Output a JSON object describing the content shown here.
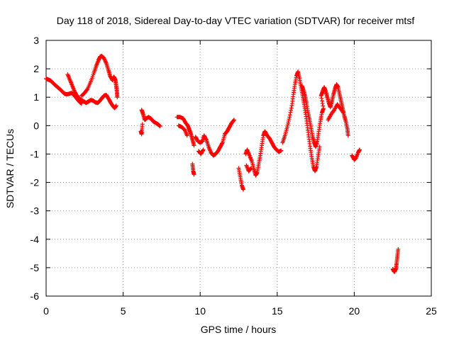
{
  "chart_data": {
    "type": "scatter",
    "title": "Day 118 of 2018, Sidereal Day-to-day VTEC variation (SDTVAR) for receiver mtsf",
    "xlabel": "GPS time / hours",
    "ylabel": "SDTVAR / TECUs",
    "xlim": [
      0,
      25
    ],
    "ylim": [
      -6,
      3
    ],
    "x_ticks": [
      "0",
      "5",
      "10",
      "15",
      "20",
      "25"
    ],
    "y_ticks": [
      "3",
      "2",
      "1",
      "0",
      "-1",
      "-2",
      "-3",
      "-4",
      "-5",
      "-6"
    ],
    "grid": true,
    "marker": "plus",
    "color": "#ff0000",
    "series": [
      {
        "name": "SDTVAR",
        "points": [
          [
            0.0,
            1.65
          ],
          [
            0.15,
            1.62
          ],
          [
            0.3,
            1.58
          ],
          [
            0.45,
            1.5
          ],
          [
            0.6,
            1.42
          ],
          [
            0.75,
            1.35
          ],
          [
            0.9,
            1.28
          ],
          [
            1.05,
            1.2
          ],
          [
            1.2,
            1.12
          ],
          [
            1.35,
            1.1
          ],
          [
            1.5,
            1.12
          ],
          [
            1.65,
            1.15
          ],
          [
            1.8,
            1.08
          ],
          [
            1.95,
            0.98
          ],
          [
            2.1,
            0.88
          ],
          [
            2.2,
            0.82
          ],
          [
            2.3,
            0.78
          ],
          [
            1.4,
            1.8
          ],
          [
            1.55,
            1.6
          ],
          [
            1.7,
            1.4
          ],
          [
            1.85,
            1.2
          ],
          [
            2.0,
            1.05
          ],
          [
            2.15,
            0.95
          ],
          [
            2.3,
            0.9
          ],
          [
            2.45,
            0.85
          ],
          [
            2.6,
            0.8
          ],
          [
            2.75,
            0.85
          ],
          [
            2.9,
            0.9
          ],
          [
            3.05,
            0.88
          ],
          [
            3.2,
            0.82
          ],
          [
            3.35,
            0.8
          ],
          [
            3.45,
            0.85
          ],
          [
            3.6,
            0.95
          ],
          [
            3.75,
            1.05
          ],
          [
            3.9,
            1.08
          ],
          [
            4.05,
            0.95
          ],
          [
            4.2,
            0.8
          ],
          [
            4.35,
            0.68
          ],
          [
            4.45,
            0.62
          ],
          [
            4.55,
            0.7
          ],
          [
            2.3,
            1.05
          ],
          [
            2.5,
            1.15
          ],
          [
            2.7,
            1.3
          ],
          [
            2.9,
            1.55
          ],
          [
            3.1,
            1.85
          ],
          [
            3.25,
            2.1
          ],
          [
            3.4,
            2.3
          ],
          [
            3.5,
            2.42
          ],
          [
            3.6,
            2.45
          ],
          [
            3.75,
            2.38
          ],
          [
            3.9,
            2.2
          ],
          [
            4.05,
            1.95
          ],
          [
            4.15,
            1.75
          ],
          [
            4.3,
            1.6
          ],
          [
            4.4,
            1.72
          ],
          [
            4.5,
            1.6
          ],
          [
            4.55,
            1.4
          ],
          [
            4.6,
            1.2
          ],
          [
            4.62,
            1.0
          ],
          [
            6.2,
            0.55
          ],
          [
            6.3,
            0.4
          ],
          [
            6.4,
            0.2
          ],
          [
            6.5,
            0.25
          ],
          [
            6.65,
            0.3
          ],
          [
            6.8,
            0.25
          ],
          [
            6.95,
            0.15
          ],
          [
            7.1,
            0.1
          ],
          [
            7.25,
            0.05
          ],
          [
            7.4,
            -0.02
          ],
          [
            6.15,
            -0.2
          ],
          [
            6.2,
            -0.3
          ],
          [
            6.25,
            0.05
          ],
          [
            8.5,
            0.3
          ],
          [
            8.7,
            0.3
          ],
          [
            8.9,
            0.25
          ],
          [
            9.05,
            0.1
          ],
          [
            9.2,
            0.0
          ],
          [
            9.3,
            -0.15
          ],
          [
            9.4,
            -0.3
          ],
          [
            9.5,
            -0.5
          ],
          [
            9.6,
            -0.7
          ],
          [
            8.6,
            0.0
          ],
          [
            8.8,
            -0.05
          ],
          [
            9.0,
            -0.15
          ],
          [
            9.15,
            -0.35
          ],
          [
            9.5,
            -1.35
          ],
          [
            9.55,
            -1.6
          ],
          [
            9.6,
            -1.72
          ],
          [
            9.7,
            -0.4
          ],
          [
            9.85,
            -0.55
          ],
          [
            10.0,
            -0.6
          ],
          [
            10.15,
            -0.55
          ],
          [
            10.25,
            -0.35
          ],
          [
            10.4,
            -0.5
          ],
          [
            10.55,
            -0.75
          ],
          [
            10.7,
            -0.95
          ],
          [
            10.85,
            -1.05
          ],
          [
            11.0,
            -1.0
          ],
          [
            11.15,
            -0.9
          ],
          [
            11.3,
            -0.75
          ],
          [
            11.45,
            -0.6
          ],
          [
            11.6,
            -0.3
          ],
          [
            11.75,
            -0.2
          ],
          [
            11.9,
            -0.05
          ],
          [
            12.05,
            0.1
          ],
          [
            12.2,
            0.2
          ],
          [
            9.9,
            -0.9
          ],
          [
            10.05,
            -1.0
          ],
          [
            10.2,
            -0.85
          ],
          [
            12.5,
            -1.5
          ],
          [
            12.6,
            -1.8
          ],
          [
            12.7,
            -2.1
          ],
          [
            12.8,
            -2.25
          ],
          [
            12.95,
            -1.0
          ],
          [
            13.05,
            -0.85
          ],
          [
            13.2,
            -1.05
          ],
          [
            13.35,
            -1.25
          ],
          [
            13.5,
            -1.55
          ],
          [
            13.6,
            -1.75
          ],
          [
            13.7,
            -1.65
          ],
          [
            13.8,
            -1.35
          ],
          [
            13.9,
            -1.05
          ],
          [
            14.0,
            -0.7
          ],
          [
            14.1,
            -0.35
          ],
          [
            14.2,
            -0.2
          ],
          [
            14.35,
            -0.35
          ],
          [
            14.5,
            -0.45
          ],
          [
            14.65,
            -0.6
          ],
          [
            14.8,
            -0.75
          ],
          [
            14.95,
            -0.85
          ],
          [
            15.1,
            -0.92
          ],
          [
            15.25,
            -0.88
          ],
          [
            13.0,
            -1.4
          ],
          [
            13.15,
            -1.6
          ],
          [
            13.3,
            -1.5
          ],
          [
            15.35,
            -0.6
          ],
          [
            15.5,
            -0.35
          ],
          [
            15.65,
            -0.05
          ],
          [
            15.8,
            0.3
          ],
          [
            15.95,
            0.7
          ],
          [
            16.05,
            1.1
          ],
          [
            16.15,
            1.45
          ],
          [
            16.25,
            1.75
          ],
          [
            16.35,
            1.9
          ],
          [
            16.45,
            1.65
          ],
          [
            16.55,
            1.35
          ],
          [
            16.65,
            1.05
          ],
          [
            16.75,
            0.75
          ],
          [
            16.85,
            0.4
          ],
          [
            16.95,
            0.0
          ],
          [
            17.05,
            -0.4
          ],
          [
            17.15,
            -0.8
          ],
          [
            17.25,
            -1.15
          ],
          [
            17.35,
            -1.45
          ],
          [
            17.45,
            -1.6
          ],
          [
            17.55,
            -1.45
          ],
          [
            17.65,
            -1.1
          ],
          [
            17.75,
            -0.75
          ],
          [
            16.6,
            1.4
          ],
          [
            16.7,
            1.25
          ],
          [
            16.8,
            1.05
          ],
          [
            16.9,
            0.8
          ],
          [
            17.0,
            0.45
          ],
          [
            17.1,
            0.2
          ],
          [
            17.2,
            -0.1
          ],
          [
            17.3,
            -0.4
          ],
          [
            17.4,
            -0.6
          ],
          [
            17.5,
            -0.75
          ],
          [
            17.6,
            -0.55
          ],
          [
            17.7,
            -0.2
          ],
          [
            17.8,
            0.15
          ],
          [
            17.9,
            0.45
          ],
          [
            18.0,
            0.6
          ],
          [
            17.85,
            1.05
          ],
          [
            17.95,
            1.2
          ],
          [
            18.05,
            1.35
          ],
          [
            18.15,
            1.2
          ],
          [
            18.25,
            1.0
          ],
          [
            18.35,
            0.8
          ],
          [
            18.45,
            0.65
          ],
          [
            18.55,
            0.85
          ],
          [
            18.65,
            1.1
          ],
          [
            18.75,
            1.3
          ],
          [
            18.85,
            1.45
          ],
          [
            18.95,
            1.35
          ],
          [
            19.05,
            1.1
          ],
          [
            19.15,
            0.85
          ],
          [
            19.25,
            0.6
          ],
          [
            19.35,
            0.35
          ],
          [
            19.45,
            0.15
          ],
          [
            19.55,
            -0.1
          ],
          [
            19.6,
            -0.35
          ],
          [
            18.3,
            0.2
          ],
          [
            18.5,
            0.4
          ],
          [
            18.7,
            0.55
          ],
          [
            18.9,
            0.75
          ],
          [
            19.1,
            0.6
          ],
          [
            19.3,
            0.45
          ],
          [
            19.85,
            -1.05
          ],
          [
            20.0,
            -1.2
          ],
          [
            20.1,
            -1.15
          ],
          [
            20.25,
            -0.95
          ],
          [
            20.35,
            -0.85
          ],
          [
            22.5,
            -5.05
          ],
          [
            22.6,
            -5.15
          ],
          [
            22.7,
            -5.05
          ],
          [
            22.75,
            -4.85
          ],
          [
            22.8,
            -4.6
          ],
          [
            22.85,
            -4.35
          ]
        ]
      }
    ]
  }
}
